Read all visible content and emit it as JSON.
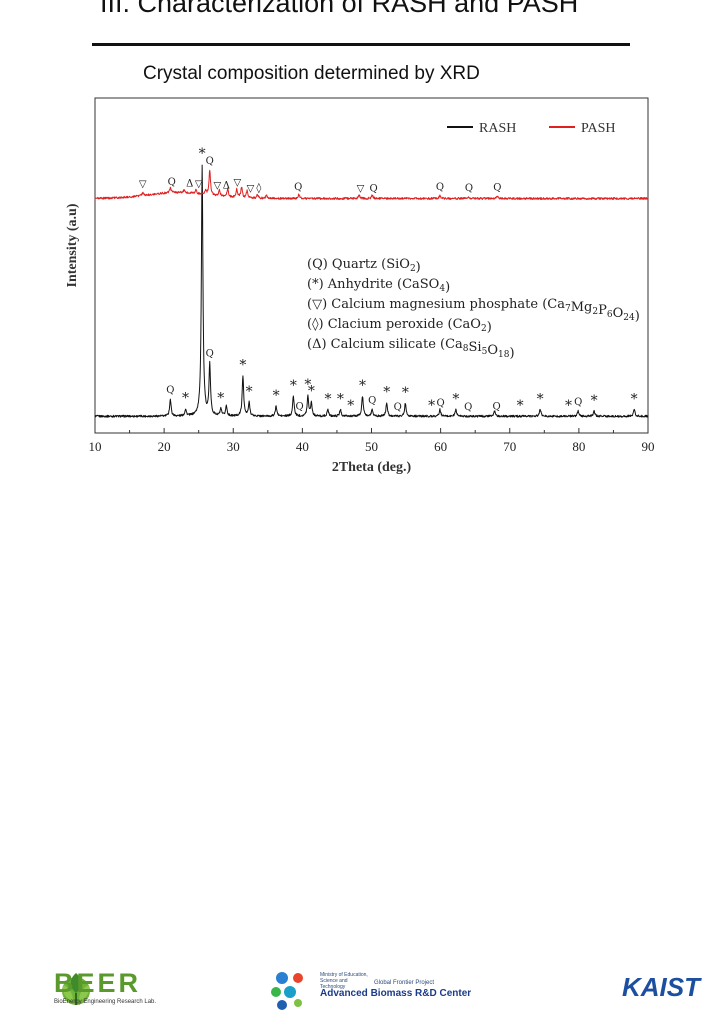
{
  "slide": {
    "title": "III. Characterization of RASH and PASH",
    "subtitle": "Crystal composition determined by XRD"
  },
  "chart_data": {
    "type": "line",
    "xlabel": "2Theta (deg.)",
    "ylabel": "Intensity (a.u)",
    "xlim": [
      10,
      90
    ],
    "x_ticks": [
      "10",
      "20",
      "30",
      "40",
      "50",
      "60",
      "70",
      "80",
      "90"
    ],
    "y_ticks": "none",
    "grid": false,
    "legend_position": "top-right",
    "series": [
      {
        "name": "RASH",
        "color": "#111111",
        "baseline": 0.05,
        "peaks": [
          {
            "x": 20.9,
            "h": 0.05
          },
          {
            "x": 23.1,
            "h": 0.02
          },
          {
            "x": 25.5,
            "h": 0.75
          },
          {
            "x": 26.6,
            "h": 0.15
          },
          {
            "x": 28.2,
            "h": 0.02
          },
          {
            "x": 29.0,
            "h": 0.03
          },
          {
            "x": 31.4,
            "h": 0.12
          },
          {
            "x": 32.3,
            "h": 0.04
          },
          {
            "x": 36.2,
            "h": 0.03
          },
          {
            "x": 38.7,
            "h": 0.06
          },
          {
            "x": 40.8,
            "h": 0.06
          },
          {
            "x": 41.3,
            "h": 0.04
          },
          {
            "x": 43.7,
            "h": 0.02
          },
          {
            "x": 45.5,
            "h": 0.02
          },
          {
            "x": 48.7,
            "h": 0.06
          },
          {
            "x": 50.1,
            "h": 0.02
          },
          {
            "x": 52.2,
            "h": 0.04
          },
          {
            "x": 54.9,
            "h": 0.04
          },
          {
            "x": 59.9,
            "h": 0.02
          },
          {
            "x": 62.2,
            "h": 0.02
          },
          {
            "x": 67.8,
            "h": 0.015
          },
          {
            "x": 74.4,
            "h": 0.02
          },
          {
            "x": 79.9,
            "h": 0.015
          },
          {
            "x": 82.2,
            "h": 0.015
          },
          {
            "x": 88.0,
            "h": 0.02
          }
        ]
      },
      {
        "name": "PASH",
        "color": "#e02020",
        "baseline": 0.7,
        "hump": {
          "center": 22,
          "height": 0.018,
          "width": 6
        },
        "peaks": [
          {
            "x": 16.9,
            "h": 0.008
          },
          {
            "x": 20.9,
            "h": 0.014
          },
          {
            "x": 22.9,
            "h": 0.008
          },
          {
            "x": 24.6,
            "h": 0.01
          },
          {
            "x": 26.0,
            "h": 0.01
          },
          {
            "x": 26.6,
            "h": 0.075
          },
          {
            "x": 28.0,
            "h": 0.018
          },
          {
            "x": 29.2,
            "h": 0.024
          },
          {
            "x": 30.5,
            "h": 0.026
          },
          {
            "x": 31.2,
            "h": 0.032
          },
          {
            "x": 32.0,
            "h": 0.022
          },
          {
            "x": 33.5,
            "h": 0.012
          },
          {
            "x": 34.8,
            "h": 0.01
          },
          {
            "x": 39.5,
            "h": 0.012
          },
          {
            "x": 48.2,
            "h": 0.01
          },
          {
            "x": 50.1,
            "h": 0.01
          },
          {
            "x": 59.9,
            "h": 0.008
          },
          {
            "x": 64.0,
            "h": 0.006
          },
          {
            "x": 68.2,
            "h": 0.006
          }
        ]
      }
    ],
    "annotations_pash": [
      {
        "x": 16.9,
        "label": "▽"
      },
      {
        "x": 21.1,
        "label": "Q"
      },
      {
        "x": 23.7,
        "label": "Δ"
      },
      {
        "x": 25.0,
        "label": "▽"
      },
      {
        "x": 26.6,
        "label": "Q"
      },
      {
        "x": 27.7,
        "label": "▽"
      },
      {
        "x": 29.0,
        "label": "Δ"
      },
      {
        "x": 30.6,
        "label": "▽"
      },
      {
        "x": 32.5,
        "label": "▽"
      },
      {
        "x": 33.7,
        "label": "◊"
      },
      {
        "x": 39.4,
        "label": "Q"
      },
      {
        "x": 48.4,
        "label": "▽"
      },
      {
        "x": 50.3,
        "label": "Q"
      },
      {
        "x": 59.9,
        "label": "Q"
      },
      {
        "x": 64.1,
        "label": "Q"
      },
      {
        "x": 68.2,
        "label": "Q"
      }
    ],
    "annotations_rash": [
      {
        "x": 25.5,
        "label": "*"
      },
      {
        "x": 26.6,
        "label": "Q"
      },
      {
        "x": 20.9,
        "label": "Q"
      },
      {
        "x": 23.1,
        "label": "*"
      },
      {
        "x": 28.2,
        "label": "*"
      },
      {
        "x": 31.4,
        "label": "*"
      },
      {
        "x": 32.3,
        "label": "*"
      },
      {
        "x": 36.2,
        "label": "*"
      },
      {
        "x": 38.7,
        "label": "*"
      },
      {
        "x": 40.8,
        "label": "*"
      },
      {
        "x": 39.6,
        "label": "Q"
      },
      {
        "x": 41.3,
        "label": "*"
      },
      {
        "x": 43.7,
        "label": "*"
      },
      {
        "x": 45.5,
        "label": "*"
      },
      {
        "x": 47.0,
        "label": "*"
      },
      {
        "x": 48.7,
        "label": "*"
      },
      {
        "x": 50.1,
        "label": "Q"
      },
      {
        "x": 52.2,
        "label": "*"
      },
      {
        "x": 53.8,
        "label": "Q"
      },
      {
        "x": 54.9,
        "label": "*"
      },
      {
        "x": 58.7,
        "label": "*"
      },
      {
        "x": 60.0,
        "label": "Q"
      },
      {
        "x": 62.2,
        "label": "*"
      },
      {
        "x": 64.0,
        "label": "Q"
      },
      {
        "x": 68.1,
        "label": "Q"
      },
      {
        "x": 71.5,
        "label": "*"
      },
      {
        "x": 74.4,
        "label": "*"
      },
      {
        "x": 78.5,
        "label": "*"
      },
      {
        "x": 79.9,
        "label": "Q"
      },
      {
        "x": 82.2,
        "label": "*"
      },
      {
        "x": 88.0,
        "label": "*"
      }
    ],
    "phase_legend": [
      {
        "symbol": "(Q)",
        "name": "Quartz",
        "formula": "(SiO",
        "sub1": "2",
        "tail": ")"
      },
      {
        "symbol": "(*)",
        "name": "Anhydrite",
        "formula": "(CaSO",
        "sub1": "4",
        "tail": ")"
      },
      {
        "symbol": "(▽)",
        "name": "Calcium magnesium phosphate",
        "formula": "(Ca",
        "sub1": "7",
        "mid1": "Mg",
        "sub2": "2",
        "mid2": "P",
        "sub3": "6",
        "mid3": "O",
        "sub4": "24",
        "tail": ")"
      },
      {
        "symbol": "(◊)",
        "name": "Clacium peroxide",
        "formula": "(CaO",
        "sub1": "2",
        "tail": ")"
      },
      {
        "symbol": "(Δ)",
        "name": "Calcium silicate",
        "formula": "(Ca",
        "sub1": "8",
        "mid1": "Si",
        "sub2": "5",
        "mid2": "O",
        "sub3": "18",
        "tail": ")"
      }
    ]
  },
  "footer": {
    "beer_name": "BEER",
    "beer_sub": "BioEnergy Engineering Research Lab.",
    "abrc_ministry": "Ministry of Education, Science and Technology",
    "abrc_project": "Global Frontier Project",
    "abrc_name": "Advanced Biomass R&D Center",
    "kaist": "KAIST"
  }
}
